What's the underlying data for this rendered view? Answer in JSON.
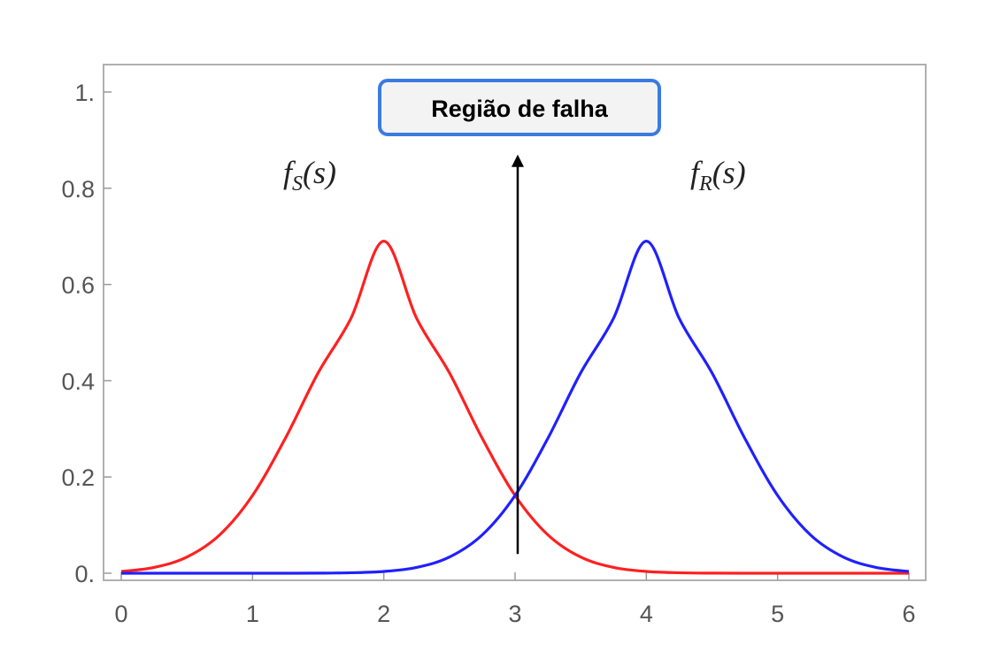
{
  "chart_data": {
    "type": "line",
    "title": "",
    "xlabel": "",
    "ylabel": "",
    "xlim": [
      0,
      6
    ],
    "ylim": [
      0,
      1.0
    ],
    "xticks": [
      0,
      1,
      2,
      3,
      4,
      5,
      6
    ],
    "xtick_labels": [
      "0",
      "1",
      "2",
      "3",
      "4",
      "5",
      "6"
    ],
    "yticks": [
      0,
      0.2,
      0.4,
      0.6,
      0.8,
      1.0
    ],
    "ytick_labels": [
      "0.",
      "0.2",
      "0.4",
      "0.6",
      "0.8",
      "1."
    ],
    "grid": false,
    "legend": "none",
    "series": [
      {
        "color": "#ff2020",
        "label": {
          "func": "f",
          "sub": "S",
          "arg": "(s)"
        },
        "x": [
          0,
          0.25,
          0.5,
          0.75,
          1.0,
          1.25,
          1.5,
          1.75,
          2.0,
          2.25,
          2.5,
          2.75,
          3.0,
          3.25,
          3.5,
          3.75,
          4.0,
          4.25,
          4.5,
          4.75,
          5.0,
          5.25,
          5.5,
          5.75,
          6.0
        ],
        "y": [
          0.0037,
          0.0121,
          0.0336,
          0.0797,
          0.1616,
          0.2804,
          0.4165,
          0.5298,
          0.69,
          0.5298,
          0.4165,
          0.2804,
          0.1616,
          0.0797,
          0.0336,
          0.0121,
          0.0037,
          0.001,
          0.0002,
          0.0,
          0.0,
          0.0,
          0.0,
          0.0,
          0.0
        ]
      },
      {
        "color": "#2020ff",
        "label": {
          "func": "f",
          "sub": "R",
          "arg": "(s)"
        },
        "x": [
          0,
          0.25,
          0.5,
          0.75,
          1.0,
          1.25,
          1.5,
          1.75,
          2.0,
          2.25,
          2.5,
          2.75,
          3.0,
          3.25,
          3.5,
          3.75,
          4.0,
          4.25,
          4.5,
          4.75,
          5.0,
          5.25,
          5.5,
          5.75,
          6.0
        ],
        "y": [
          0.0,
          0.0,
          0.0,
          0.0,
          0.0,
          0.0,
          0.0002,
          0.001,
          0.0037,
          0.0121,
          0.0336,
          0.0797,
          0.1616,
          0.2804,
          0.4165,
          0.5298,
          0.69,
          0.5298,
          0.4165,
          0.2804,
          0.1616,
          0.0797,
          0.0336,
          0.0121,
          0.0037
        ]
      }
    ],
    "annotations": [
      {
        "text": "Região de falha",
        "arrow_x": 3.02,
        "arrow_from_y": 0.04,
        "arrow_to_y": 0.87
      }
    ]
  }
}
